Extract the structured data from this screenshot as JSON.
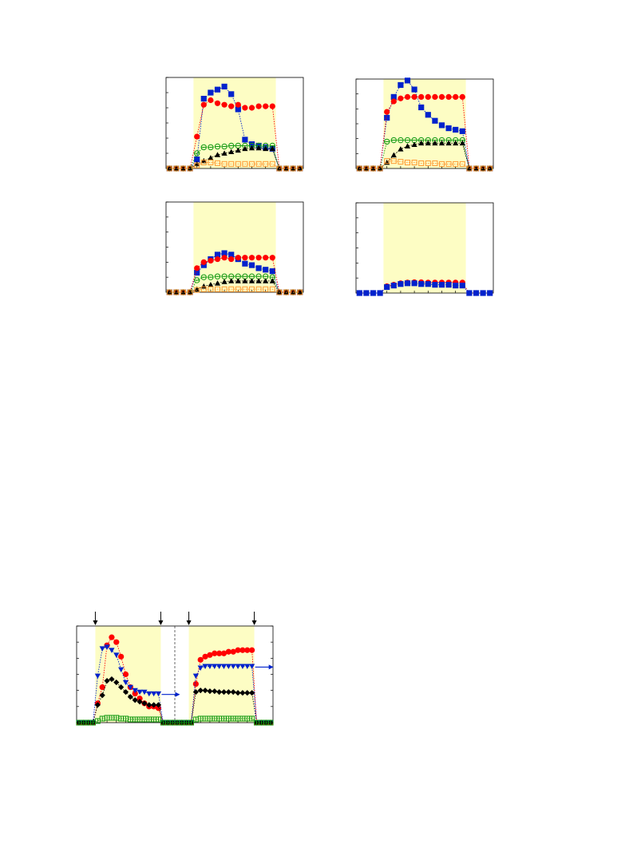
{
  "colors": {
    "shade": "#FDFDC4",
    "red": "#FF0000",
    "blue": "#0022CC",
    "green": "#119911",
    "black": "#000000",
    "orange": "#FF9933",
    "axis": "#000000"
  },
  "chart_data": [
    {
      "id": "panel-top-left",
      "type": "line",
      "x": [
        1,
        2,
        3,
        4,
        5,
        6,
        7,
        8,
        9,
        10,
        11,
        12,
        13,
        14,
        15,
        16,
        17,
        18,
        19,
        20
      ],
      "xlim": [
        0.5,
        20.5
      ],
      "ylim": [
        0,
        6
      ],
      "shaded_x": [
        4.5,
        16.5
      ],
      "series": [
        {
          "marker": "square",
          "color": "blue",
          "values": [
            0,
            0,
            0,
            0,
            0.6,
            4.6,
            5.0,
            5.2,
            5.4,
            4.9,
            3.9,
            1.9,
            1.6,
            1.5,
            1.4,
            1.3,
            0,
            0,
            0,
            0
          ]
        },
        {
          "marker": "circle",
          "color": "red",
          "values": [
            0,
            0,
            0,
            0,
            2.1,
            4.2,
            4.5,
            4.3,
            4.2,
            4.1,
            4.2,
            4.0,
            4.0,
            4.1,
            4.1,
            4.1,
            0,
            0,
            0,
            0
          ]
        },
        {
          "marker": "ocircle",
          "color": "green",
          "values": [
            0,
            0,
            0,
            0,
            1.0,
            1.4,
            1.4,
            1.45,
            1.45,
            1.5,
            1.5,
            1.5,
            1.5,
            1.5,
            1.5,
            1.5,
            0,
            0,
            0,
            0
          ]
        },
        {
          "marker": "triangle",
          "color": "black",
          "values": [
            0,
            0,
            0,
            0,
            0.3,
            0.5,
            0.7,
            0.9,
            1.0,
            1.1,
            1.2,
            1.3,
            1.35,
            1.35,
            1.3,
            1.3,
            0,
            0,
            0,
            0
          ]
        },
        {
          "marker": "osquare",
          "color": "orange",
          "values": [
            0,
            0,
            0,
            0,
            0.2,
            0.4,
            0.4,
            0.35,
            0.3,
            0.3,
            0.3,
            0.3,
            0.3,
            0.3,
            0.3,
            0.3,
            0,
            0,
            0,
            0
          ]
        }
      ]
    },
    {
      "id": "panel-top-right",
      "type": "line",
      "x": [
        1,
        2,
        3,
        4,
        5,
        6,
        7,
        8,
        9,
        10,
        11,
        12,
        13,
        14,
        15,
        16,
        17,
        18,
        19,
        20
      ],
      "xlim": [
        0.5,
        20.5
      ],
      "ylim": [
        0,
        6
      ],
      "shaded_x": [
        4.5,
        16.5
      ],
      "series": [
        {
          "marker": "square",
          "color": "blue",
          "values": [
            0,
            0,
            0,
            0,
            3.4,
            4.8,
            5.6,
            5.9,
            5.3,
            4.1,
            3.6,
            3.2,
            2.9,
            2.7,
            2.6,
            2.5,
            0,
            0,
            0,
            0
          ]
        },
        {
          "marker": "circle",
          "color": "red",
          "values": [
            0,
            0,
            0,
            0,
            3.8,
            4.5,
            4.7,
            4.8,
            4.8,
            4.8,
            4.8,
            4.8,
            4.8,
            4.8,
            4.8,
            4.8,
            0,
            0,
            0,
            0
          ]
        },
        {
          "marker": "ocircle",
          "color": "green",
          "values": [
            0,
            0,
            0,
            0,
            1.8,
            1.9,
            1.9,
            1.9,
            1.9,
            1.9,
            1.9,
            1.9,
            1.9,
            1.9,
            1.9,
            1.9,
            0,
            0,
            0,
            0
          ]
        },
        {
          "marker": "triangle",
          "color": "black",
          "values": [
            0,
            0,
            0,
            0,
            0.4,
            0.9,
            1.3,
            1.5,
            1.6,
            1.7,
            1.7,
            1.7,
            1.7,
            1.7,
            1.7,
            1.7,
            0,
            0,
            0,
            0
          ]
        },
        {
          "marker": "osquare",
          "color": "orange",
          "values": [
            0,
            0,
            0,
            0,
            0.5,
            0.5,
            0.45,
            0.4,
            0.4,
            0.35,
            0.35,
            0.35,
            0.3,
            0.3,
            0.3,
            0.3,
            0,
            0,
            0,
            0
          ]
        }
      ]
    },
    {
      "id": "panel-mid-left",
      "type": "line",
      "x": [
        1,
        2,
        3,
        4,
        5,
        6,
        7,
        8,
        9,
        10,
        11,
        12,
        13,
        14,
        15,
        16,
        17,
        18,
        19,
        20
      ],
      "xlim": [
        0.5,
        20.5
      ],
      "ylim": [
        0,
        6
      ],
      "shaded_x": [
        4.5,
        16.5
      ],
      "series": [
        {
          "marker": "square",
          "color": "blue",
          "values": [
            0,
            0,
            0,
            0,
            1.3,
            1.8,
            2.2,
            2.5,
            2.6,
            2.5,
            2.2,
            1.9,
            1.8,
            1.6,
            1.5,
            1.4,
            0,
            0,
            0,
            0
          ]
        },
        {
          "marker": "circle",
          "color": "red",
          "values": [
            0,
            0,
            0,
            0,
            1.6,
            2.0,
            2.1,
            2.2,
            2.3,
            2.2,
            2.3,
            2.3,
            2.3,
            2.3,
            2.3,
            2.3,
            0,
            0,
            0,
            0
          ]
        },
        {
          "marker": "ocircle",
          "color": "green",
          "values": [
            0,
            0,
            0,
            0,
            0.8,
            1.0,
            1.0,
            1.05,
            1.05,
            1.05,
            1.05,
            1.05,
            1.05,
            1.05,
            1.05,
            1.0,
            0,
            0,
            0,
            0
          ]
        },
        {
          "marker": "triangle",
          "color": "black",
          "values": [
            0,
            0,
            0,
            0,
            0.2,
            0.4,
            0.5,
            0.6,
            0.7,
            0.75,
            0.75,
            0.75,
            0.75,
            0.75,
            0.75,
            0.75,
            0,
            0,
            0,
            0
          ]
        },
        {
          "marker": "osquare",
          "color": "orange",
          "values": [
            0,
            0,
            0,
            0,
            0.15,
            0.2,
            0.2,
            0.2,
            0.2,
            0.2,
            0.2,
            0.2,
            0.2,
            0.2,
            0.2,
            0.2,
            0,
            0,
            0,
            0
          ]
        }
      ]
    },
    {
      "id": "panel-mid-right",
      "type": "line",
      "x": [
        1,
        2,
        3,
        4,
        5,
        6,
        7,
        8,
        9,
        10,
        11,
        12,
        13,
        14,
        15,
        16,
        17,
        18,
        19,
        20
      ],
      "xlim": [
        0.5,
        20.5
      ],
      "ylim": [
        0,
        6
      ],
      "shaded_x": [
        4.5,
        16.5
      ],
      "series": [
        {
          "marker": "circle",
          "color": "red",
          "values": [
            0,
            0,
            0,
            0,
            0.45,
            0.55,
            0.65,
            0.7,
            0.72,
            0.72,
            0.7,
            0.7,
            0.7,
            0.7,
            0.7,
            0.7,
            0,
            0,
            0,
            0
          ]
        },
        {
          "marker": "square",
          "color": "blue",
          "values": [
            0,
            0,
            0,
            0,
            0.4,
            0.5,
            0.6,
            0.65,
            0.65,
            0.6,
            0.6,
            0.55,
            0.55,
            0.55,
            0.5,
            0.5,
            0,
            0,
            0,
            0
          ]
        }
      ]
    },
    {
      "id": "panel-bottom",
      "type": "line",
      "x": [
        1,
        2,
        3,
        4,
        5,
        6,
        7,
        8,
        9,
        10,
        11,
        12,
        13,
        14,
        15,
        16,
        17,
        18,
        19,
        20,
        21,
        22,
        23,
        24,
        25,
        26,
        27,
        28,
        29,
        30,
        31,
        32,
        33,
        34,
        35,
        36,
        37,
        38,
        39,
        40,
        41,
        42
      ],
      "xlim": [
        0.5,
        42.5
      ],
      "ylim": [
        0,
        6
      ],
      "shaded_ranges": [
        [
          4.5,
          18.5
        ],
        [
          24.5,
          38.5
        ]
      ],
      "divider_x": 21.5,
      "arrows_x": [
        4.5,
        18.5,
        24.5,
        38.5
      ],
      "series": [
        {
          "marker": "circle",
          "color": "red",
          "values": [
            0,
            0,
            0,
            0,
            1.2,
            2.2,
            4.8,
            5.3,
            5.0,
            4.1,
            3.0,
            2.2,
            1.8,
            1.5,
            1.2,
            1.0,
            1.0,
            0.9,
            0,
            0,
            0,
            0,
            0,
            0,
            0,
            2.4,
            3.9,
            4.1,
            4.2,
            4.3,
            4.3,
            4.3,
            4.4,
            4.4,
            4.5,
            4.5,
            4.5,
            4.5,
            0,
            0,
            0,
            0
          ]
        },
        {
          "marker": "triangle-down",
          "color": "blue",
          "values": [
            0,
            0,
            0,
            0,
            2.9,
            4.6,
            4.7,
            4.5,
            4.2,
            3.3,
            2.5,
            2.2,
            2.0,
            1.9,
            1.9,
            1.8,
            1.8,
            1.8,
            0,
            0,
            0,
            0,
            0,
            0,
            0,
            2.9,
            3.4,
            3.5,
            3.5,
            3.5,
            3.5,
            3.5,
            3.5,
            3.5,
            3.5,
            3.5,
            3.5,
            3.5,
            0,
            0,
            0,
            0
          ]
        },
        {
          "marker": "diamond",
          "color": "black",
          "values": [
            0,
            0,
            0,
            0,
            1.1,
            1.7,
            2.6,
            2.7,
            2.5,
            2.2,
            1.9,
            1.6,
            1.4,
            1.3,
            1.2,
            1.1,
            1.1,
            1.1,
            0,
            0,
            0,
            0,
            0,
            0,
            0,
            1.9,
            2.0,
            2.0,
            1.95,
            1.95,
            1.9,
            1.9,
            1.9,
            1.9,
            1.85,
            1.85,
            1.85,
            1.85,
            0,
            0,
            0,
            0
          ]
        },
        {
          "marker": "osquare-plus",
          "color": "green",
          "values": [
            0,
            0,
            0,
            0,
            0.1,
            0.25,
            0.3,
            0.3,
            0.3,
            0.25,
            0.25,
            0.2,
            0.2,
            0.2,
            0.2,
            0.2,
            0.2,
            0.2,
            0,
            0,
            0,
            0,
            0,
            0,
            0,
            0.2,
            0.25,
            0.25,
            0.25,
            0.25,
            0.25,
            0.25,
            0.25,
            0.25,
            0.25,
            0.25,
            0.25,
            0.25,
            0,
            0,
            0,
            0
          ]
        }
      ],
      "right_axis_series": [
        "triangle-down"
      ]
    }
  ]
}
